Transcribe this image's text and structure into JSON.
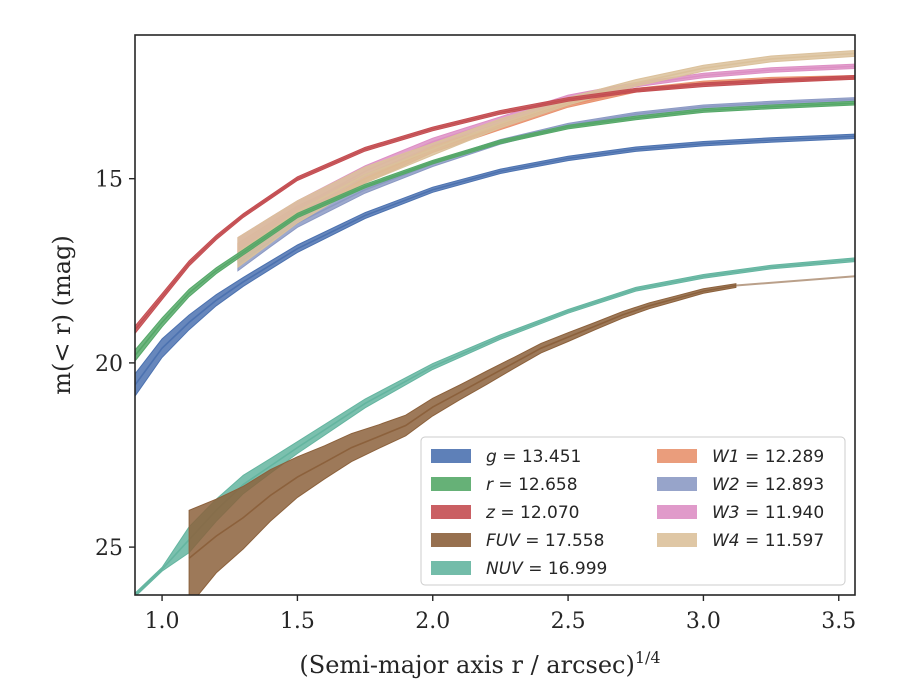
{
  "chart_data": {
    "type": "line",
    "title": "",
    "xlabel": "(Semi-major axis r / arcsec)",
    "xlabel_superscript": "1/4",
    "ylabel": "m(< r) (mag)",
    "xlim": [
      0.9,
      3.56
    ],
    "ylim": [
      26.3,
      11.1
    ],
    "y_inverted": true,
    "grid": false,
    "legend_position": "lower-right",
    "x_ticks": [
      "1.0",
      "1.5",
      "2.0",
      "2.5",
      "3.0",
      "3.5"
    ],
    "y_ticks": [
      "15",
      "20",
      "25"
    ],
    "series": [
      {
        "name": "g = 13.451",
        "legend_var": "g",
        "legend_value": "13.451",
        "color": "#4c72b0",
        "x": [
          0.9,
          1.0,
          1.1,
          1.2,
          1.3,
          1.5,
          1.75,
          2.0,
          2.25,
          2.5,
          2.75,
          3.0,
          3.25,
          3.56
        ],
        "y": [
          20.6,
          19.6,
          18.9,
          18.3,
          17.8,
          16.9,
          16.0,
          15.3,
          14.8,
          14.45,
          14.2,
          14.05,
          13.95,
          13.85
        ],
        "spread": [
          0.3,
          0.25,
          0.2,
          0.15,
          0.12,
          0.1,
          0.08,
          0.07,
          0.06,
          0.06,
          0.06,
          0.06,
          0.06,
          0.06
        ]
      },
      {
        "name": "r = 12.658",
        "legend_var": "r",
        "legend_value": "12.658",
        "color": "#55a868",
        "x": [
          0.9,
          1.0,
          1.1,
          1.2,
          1.3,
          1.5,
          1.75,
          2.0,
          2.25,
          2.5,
          2.75,
          3.0,
          3.25,
          3.56
        ],
        "y": [
          19.8,
          18.9,
          18.1,
          17.5,
          17.0,
          16.0,
          15.2,
          14.55,
          14.0,
          13.6,
          13.35,
          13.15,
          13.05,
          12.95
        ],
        "spread": [
          0.15,
          0.12,
          0.1,
          0.08,
          0.07,
          0.06,
          0.05,
          0.05,
          0.05,
          0.05,
          0.05,
          0.05,
          0.05,
          0.05
        ]
      },
      {
        "name": "z = 12.070",
        "legend_var": "z",
        "legend_value": "12.070",
        "color": "#c44e52",
        "x": [
          0.9,
          1.0,
          1.1,
          1.2,
          1.3,
          1.5,
          1.75,
          2.0,
          2.25,
          2.5,
          2.75,
          3.0,
          3.25,
          3.56
        ],
        "y": [
          19.1,
          18.2,
          17.3,
          16.6,
          16.0,
          15.0,
          14.2,
          13.65,
          13.2,
          12.85,
          12.6,
          12.45,
          12.35,
          12.25
        ],
        "spread": [
          0.1,
          0.08,
          0.07,
          0.06,
          0.05,
          0.05,
          0.05,
          0.05,
          0.05,
          0.05,
          0.05,
          0.05,
          0.05,
          0.05
        ]
      },
      {
        "name": "FUV = 17.558",
        "legend_var": "FUV",
        "legend_value": "17.558",
        "color": "#8c613c",
        "x": [
          1.1,
          1.2,
          1.3,
          1.4,
          1.5,
          1.6,
          1.7,
          1.8,
          1.9,
          2.0,
          2.1,
          2.2,
          2.3,
          2.4,
          2.5,
          2.6,
          2.7,
          2.8,
          2.9,
          3.0,
          3.12
        ],
        "y": [
          25.3,
          24.7,
          24.2,
          23.6,
          23.1,
          22.7,
          22.3,
          22.0,
          21.7,
          21.2,
          20.8,
          20.4,
          20.0,
          19.6,
          19.3,
          19.0,
          18.7,
          18.45,
          18.25,
          18.05,
          17.9
        ],
        "spread": [
          1.3,
          1.0,
          0.85,
          0.7,
          0.55,
          0.45,
          0.38,
          0.32,
          0.28,
          0.24,
          0.2,
          0.18,
          0.15,
          0.13,
          0.12,
          0.1,
          0.09,
          0.08,
          0.07,
          0.06,
          0.05
        ],
        "tail_x": [
          3.12,
          3.56
        ],
        "tail_y": [
          17.9,
          17.65
        ]
      },
      {
        "name": "NUV = 16.999",
        "legend_var": "NUV",
        "legend_value": "16.999",
        "color": "#64b5a0",
        "x": [
          0.9,
          1.0,
          1.1,
          1.2,
          1.3,
          1.4,
          1.5,
          1.75,
          2.0,
          2.25,
          2.5,
          2.75,
          3.0,
          3.25,
          3.56
        ],
        "y": [
          26.3,
          25.6,
          24.8,
          24.0,
          23.3,
          22.8,
          22.3,
          21.1,
          20.1,
          19.3,
          18.6,
          18.0,
          17.65,
          17.4,
          17.2
        ],
        "spread": [
          0.05,
          0.05,
          0.35,
          0.3,
          0.25,
          0.2,
          0.16,
          0.12,
          0.08,
          0.06,
          0.05,
          0.05,
          0.05,
          0.05,
          0.05
        ]
      },
      {
        "name": "W1 = 12.289",
        "legend_var": "W1",
        "legend_value": "12.289",
        "color": "#e8926e",
        "x": [
          1.28,
          1.4,
          1.5,
          1.75,
          2.0,
          2.25,
          2.5,
          2.75,
          3.0,
          3.25,
          3.56
        ],
        "y": [
          17.0,
          16.4,
          15.9,
          15.0,
          14.2,
          13.6,
          13.0,
          12.6,
          12.4,
          12.3,
          12.25
        ],
        "spread": [
          0.25,
          0.2,
          0.16,
          0.12,
          0.09,
          0.07,
          0.06,
          0.05,
          0.05,
          0.05,
          0.05
        ]
      },
      {
        "name": "W2 = 12.893",
        "legend_var": "W2",
        "legend_value": "12.893",
        "color": "#8c9ac4",
        "x": [
          1.28,
          1.4,
          1.5,
          1.75,
          2.0,
          2.25,
          2.5,
          2.75,
          3.0,
          3.25,
          3.56
        ],
        "y": [
          17.3,
          16.7,
          16.2,
          15.3,
          14.6,
          14.0,
          13.55,
          13.25,
          13.05,
          12.95,
          12.85
        ],
        "spread": [
          0.2,
          0.15,
          0.12,
          0.09,
          0.07,
          0.06,
          0.05,
          0.05,
          0.05,
          0.05,
          0.05
        ]
      },
      {
        "name": "W3 = 11.940",
        "legend_var": "W3",
        "legend_value": "11.940",
        "color": "#dd8fc4",
        "x": [
          1.28,
          1.4,
          1.5,
          1.75,
          2.0,
          2.25,
          2.5,
          2.75,
          3.0,
          3.25,
          3.56
        ],
        "y": [
          16.9,
          16.3,
          15.8,
          14.8,
          14.0,
          13.4,
          12.8,
          12.45,
          12.2,
          12.05,
          11.95
        ],
        "spread": [
          0.3,
          0.25,
          0.2,
          0.15,
          0.1,
          0.08,
          0.07,
          0.06,
          0.06,
          0.06,
          0.06
        ]
      },
      {
        "name": "W4 = 11.597",
        "legend_var": "W4",
        "legend_value": "11.597",
        "color": "#dbc19b",
        "x": [
          1.28,
          1.4,
          1.5,
          1.75,
          2.0,
          2.25,
          2.5,
          2.75,
          3.0,
          3.25,
          3.56
        ],
        "y": [
          17.0,
          16.4,
          15.9,
          14.9,
          14.2,
          13.5,
          12.9,
          12.4,
          12.0,
          11.75,
          11.6
        ],
        "spread": [
          0.4,
          0.35,
          0.3,
          0.22,
          0.16,
          0.12,
          0.1,
          0.09,
          0.08,
          0.08,
          0.08
        ]
      }
    ]
  }
}
